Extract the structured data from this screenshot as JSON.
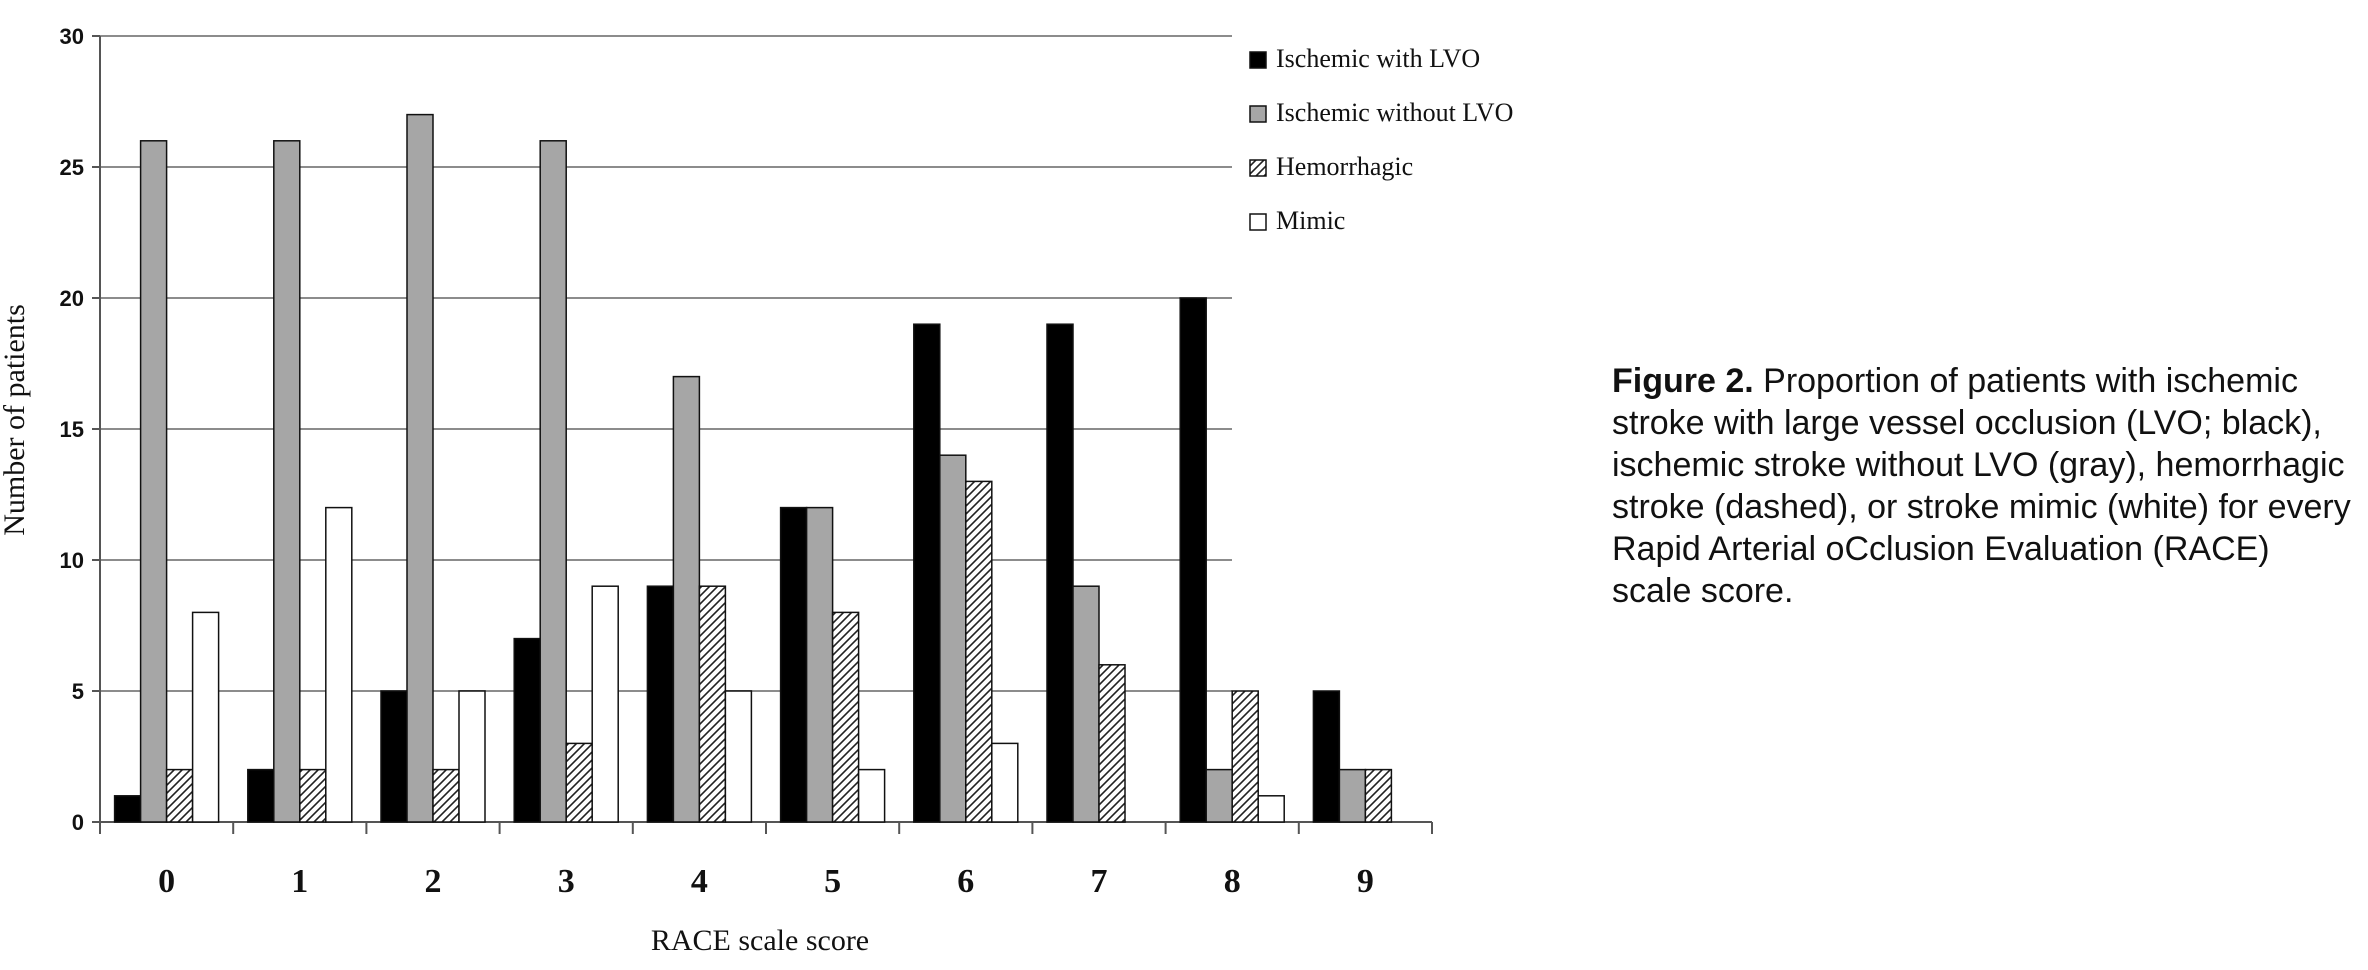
{
  "chart_data": {
    "type": "bar",
    "xlabel": "RACE scale score",
    "ylabel": "Number of patients",
    "ylim": [
      0,
      30
    ],
    "yticks": [
      0,
      5,
      10,
      15,
      20,
      25,
      30
    ],
    "grid": "horizontal",
    "legend_position": "top-right",
    "categories": [
      "0",
      "1",
      "2",
      "3",
      "4",
      "5",
      "6",
      "7",
      "8",
      "9"
    ],
    "series": [
      {
        "name": "Ischemic with LVO",
        "fill": "solid",
        "color": "#000000",
        "values": [
          1,
          2,
          5,
          7,
          9,
          12,
          19,
          19,
          20,
          5
        ]
      },
      {
        "name": "Ischemic without LVO",
        "fill": "solid",
        "color": "#a6a6a6",
        "values": [
          26,
          26,
          27,
          26,
          17,
          12,
          14,
          9,
          2,
          2
        ]
      },
      {
        "name": "Hemorrhagic",
        "fill": "hatched",
        "color": "#ffffff",
        "values": [
          2,
          2,
          2,
          3,
          9,
          8,
          13,
          6,
          5,
          2
        ]
      },
      {
        "name": "Mimic",
        "fill": "solid",
        "color": "#ffffff",
        "values": [
          8,
          12,
          5,
          9,
          5,
          2,
          3,
          0,
          1,
          0
        ]
      }
    ]
  },
  "caption": {
    "label": "Figure 2.",
    "text": " Proportion of patients with ischemic stroke with large vessel occlusion (LVO; black), ischemic stroke without LVO (gray), hemorrhagic stroke (dashed), or stroke mimic (white) for every Rapid Arterial oCclusion Evaluation (RACE) scale score."
  }
}
